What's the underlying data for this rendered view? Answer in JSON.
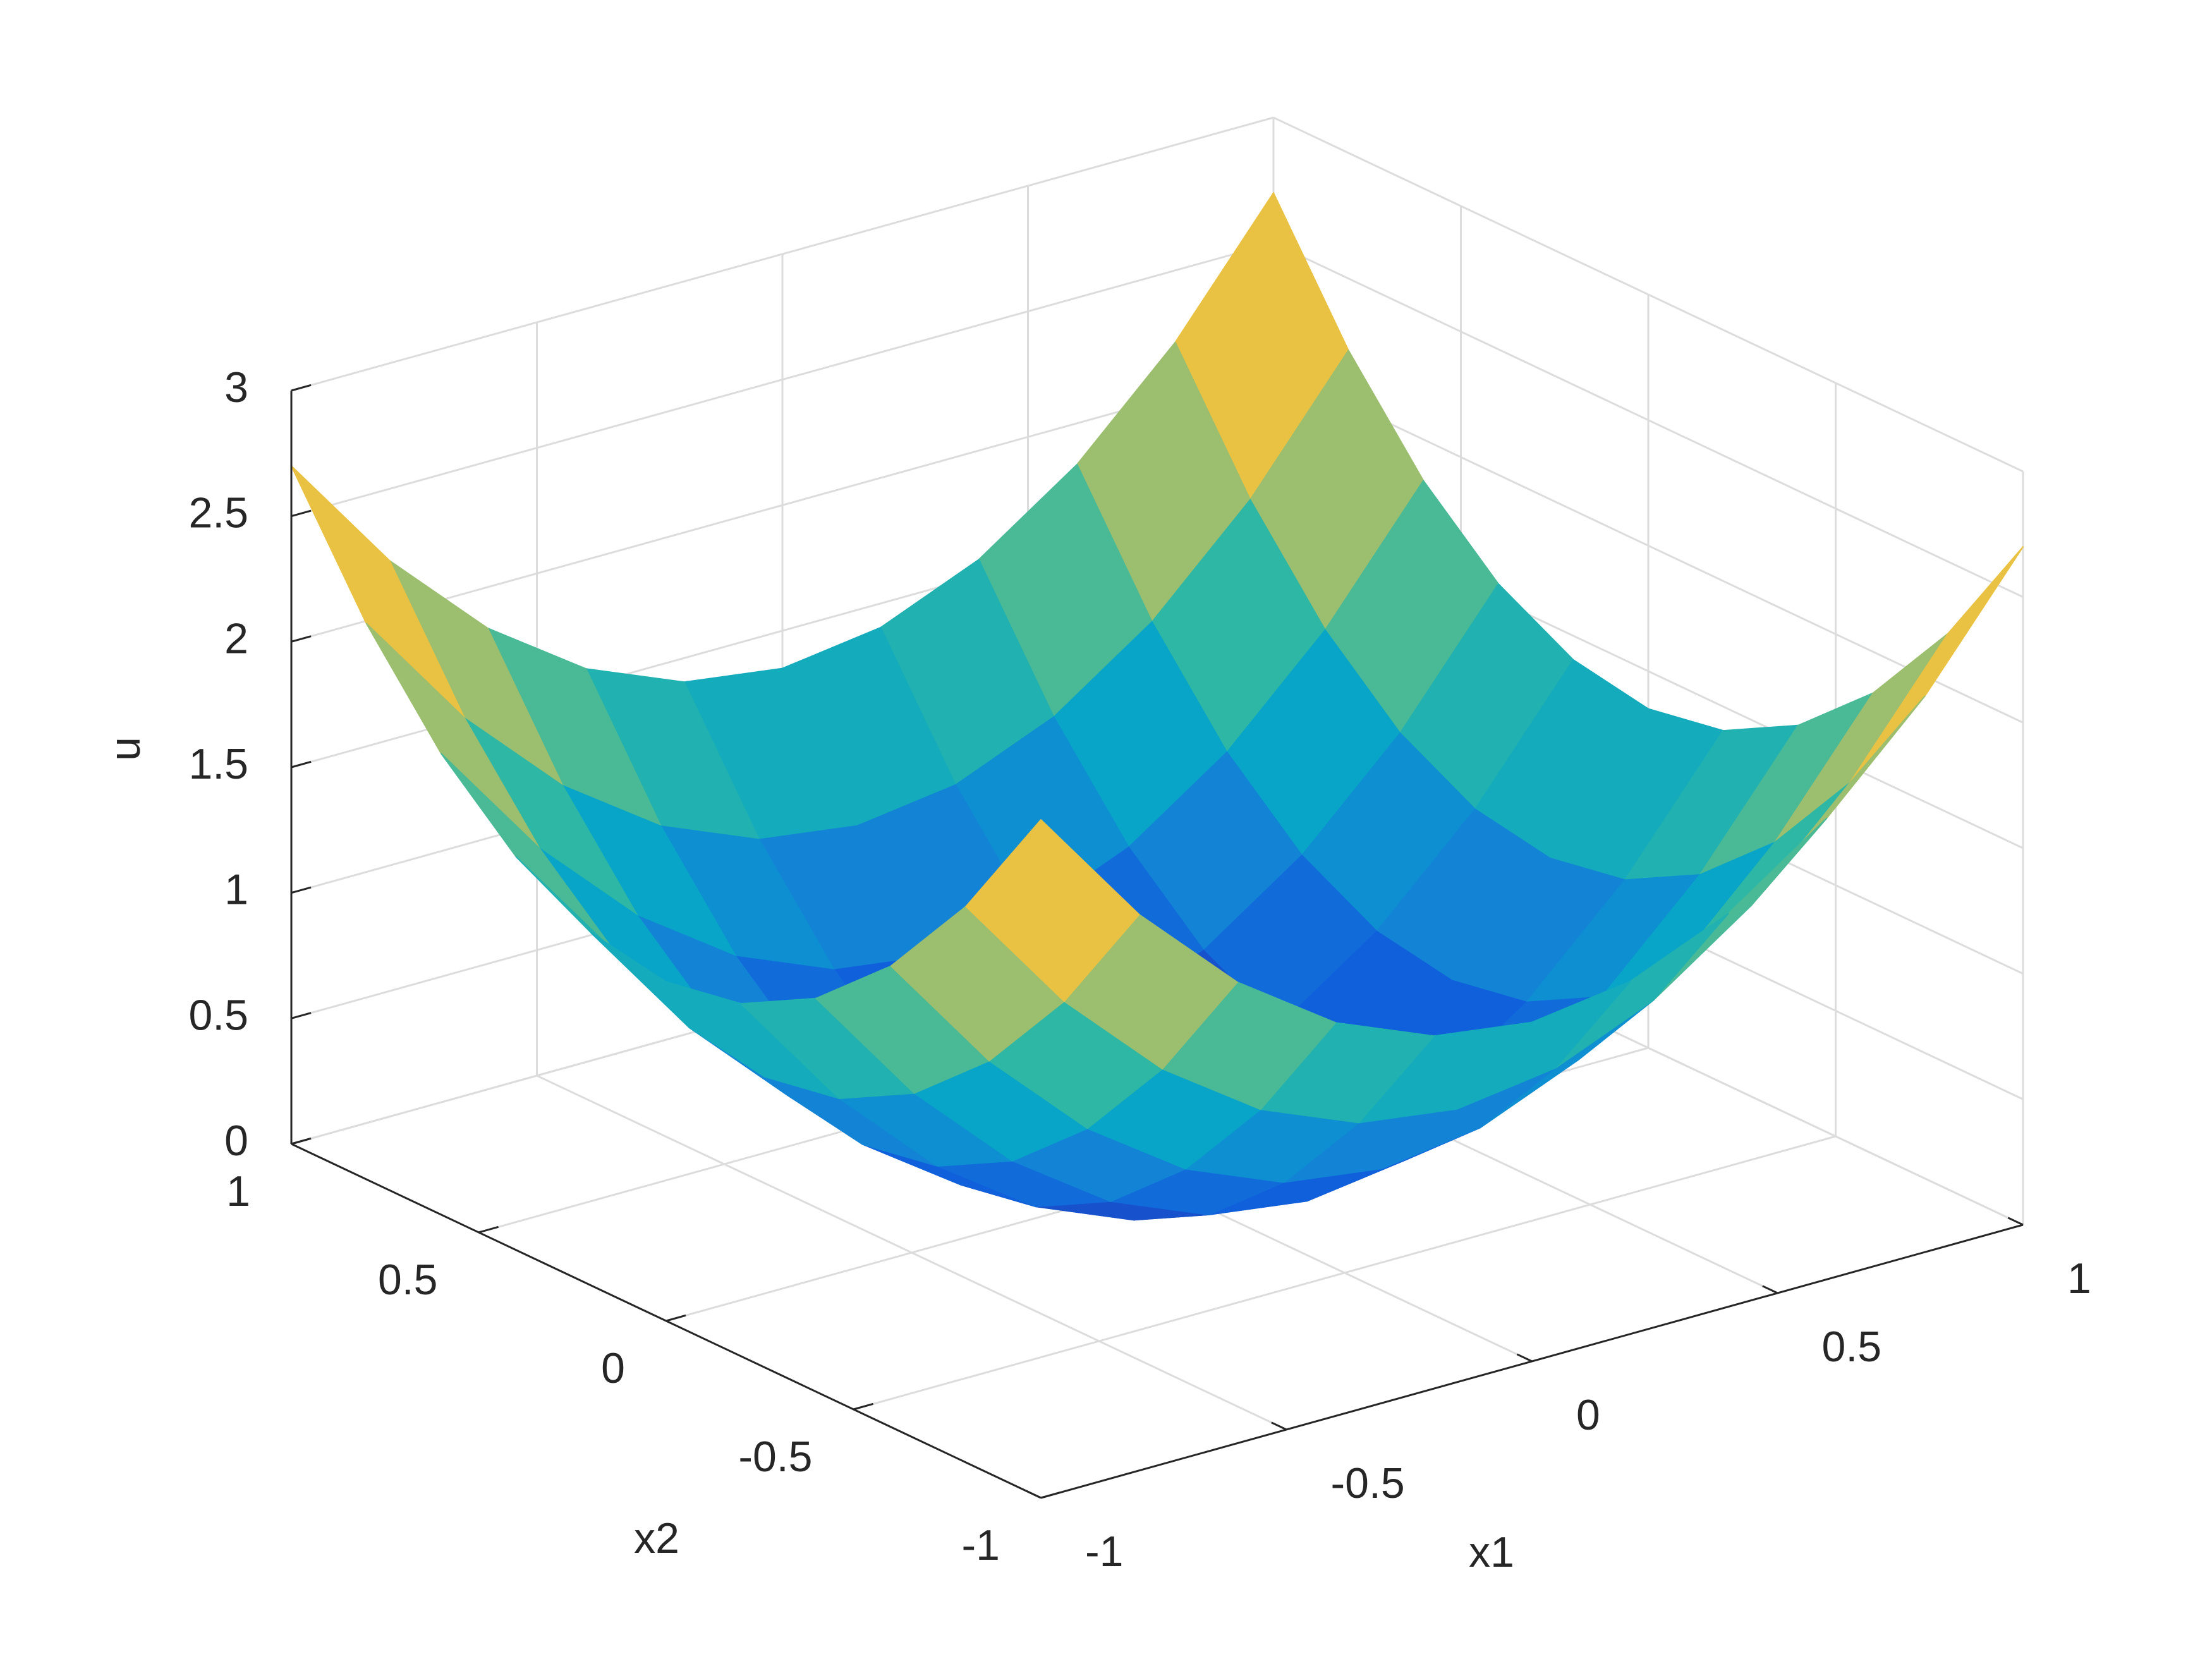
{
  "chart_data": {
    "type": "surface",
    "x1label": "x1",
    "x2label": "x2",
    "zlabel": "u",
    "x1": [
      -1,
      -0.8,
      -0.6,
      -0.4,
      -0.2,
      0,
      0.2,
      0.4,
      0.6,
      0.8,
      1
    ],
    "x2": [
      -1,
      -0.8,
      -0.6,
      -0.4,
      -0.2,
      0,
      0.2,
      0.4,
      0.6,
      0.8,
      1
    ],
    "z": [
      [
        2.7,
        2.214,
        1.836,
        1.566,
        1.404,
        1.35,
        1.404,
        1.566,
        1.836,
        2.214,
        2.7
      ],
      [
        2.214,
        1.728,
        1.35,
        1.08,
        0.918,
        0.864,
        0.918,
        1.08,
        1.35,
        1.728,
        2.214
      ],
      [
        1.836,
        1.35,
        0.972,
        0.702,
        0.54,
        0.486,
        0.54,
        0.702,
        0.972,
        1.35,
        1.836
      ],
      [
        1.566,
        1.08,
        0.702,
        0.432,
        0.27,
        0.216,
        0.27,
        0.432,
        0.702,
        1.08,
        1.566
      ],
      [
        1.404,
        0.918,
        0.54,
        0.27,
        0.108,
        0.054,
        0.108,
        0.27,
        0.54,
        0.918,
        1.404
      ],
      [
        1.35,
        0.864,
        0.486,
        0.216,
        0.054,
        0,
        0.054,
        0.216,
        0.486,
        0.864,
        1.35
      ],
      [
        1.404,
        0.918,
        0.54,
        0.27,
        0.108,
        0.054,
        0.108,
        0.27,
        0.54,
        0.918,
        1.404
      ],
      [
        1.566,
        1.08,
        0.702,
        0.432,
        0.27,
        0.216,
        0.27,
        0.432,
        0.702,
        1.08,
        1.566
      ],
      [
        1.836,
        1.35,
        0.972,
        0.702,
        0.54,
        0.486,
        0.54,
        0.702,
        0.972,
        1.35,
        1.836
      ],
      [
        2.214,
        1.728,
        1.35,
        1.08,
        0.918,
        0.864,
        0.918,
        1.08,
        1.35,
        1.728,
        2.214
      ],
      [
        2.7,
        2.214,
        1.836,
        1.566,
        1.404,
        1.35,
        1.404,
        1.566,
        1.836,
        2.214,
        2.7
      ]
    ],
    "x1lim": [
      -1,
      1
    ],
    "x2lim": [
      -1,
      1
    ],
    "zlim": [
      0,
      3
    ],
    "x1ticks": [
      -1,
      -0.5,
      0,
      0.5,
      1
    ],
    "x2ticks": [
      -1,
      -0.5,
      0,
      0.5,
      1
    ],
    "zticks": [
      0,
      0.5,
      1,
      1.5,
      2,
      2.5,
      3
    ],
    "grid": true,
    "colormap": [
      "#352a87",
      "#0f5cdd",
      "#1481d6",
      "#06a4ca",
      "#2eb7a4",
      "#87bf77",
      "#d1bb59",
      "#fec832",
      "#f9fb0e"
    ]
  }
}
